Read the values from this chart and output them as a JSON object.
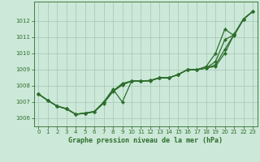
{
  "title": "Graphe pression niveau de la mer (hPa)",
  "background_color": "#cce8d8",
  "grid_color": "#aaccbb",
  "line_color": "#2d6e2d",
  "marker_color": "#2d6e2d",
  "xlim": [
    -0.5,
    23.5
  ],
  "ylim": [
    1005.5,
    1013.2
  ],
  "yticks": [
    1006,
    1007,
    1008,
    1009,
    1010,
    1011,
    1012
  ],
  "xticks": [
    0,
    1,
    2,
    3,
    4,
    5,
    6,
    7,
    8,
    9,
    10,
    11,
    12,
    13,
    14,
    15,
    16,
    17,
    18,
    19,
    20,
    21,
    22,
    23
  ],
  "line1": [
    1007.5,
    1007.1,
    1006.75,
    1006.6,
    1006.25,
    1006.3,
    1006.4,
    1007.0,
    1007.8,
    1007.0,
    1008.3,
    1008.3,
    1008.3,
    1008.5,
    1008.5,
    1008.7,
    1009.0,
    1009.0,
    1009.2,
    1010.0,
    1011.5,
    1011.1,
    1012.1,
    1012.6
  ],
  "line2": [
    1007.5,
    1007.1,
    1006.75,
    1006.58,
    1006.25,
    1006.3,
    1006.4,
    1006.92,
    1007.65,
    1008.05,
    1008.3,
    1008.3,
    1008.33,
    1008.5,
    1008.5,
    1008.7,
    1009.0,
    1009.0,
    1009.1,
    1009.5,
    1010.85,
    1011.15,
    1012.12,
    1012.6
  ],
  "line3": [
    1007.5,
    1007.1,
    1006.75,
    1006.58,
    1006.25,
    1006.32,
    1006.42,
    1006.98,
    1007.68,
    1008.12,
    1008.3,
    1008.3,
    1008.33,
    1008.5,
    1008.5,
    1008.7,
    1009.0,
    1009.0,
    1009.1,
    1009.3,
    1010.25,
    1011.18,
    1012.12,
    1012.6
  ],
  "line4": [
    1007.5,
    1007.1,
    1006.75,
    1006.58,
    1006.25,
    1006.32,
    1006.42,
    1006.98,
    1007.68,
    1008.15,
    1008.3,
    1008.3,
    1008.33,
    1008.5,
    1008.5,
    1008.7,
    1009.0,
    1009.0,
    1009.1,
    1009.2,
    1010.02,
    1011.18,
    1012.12,
    1012.6
  ]
}
